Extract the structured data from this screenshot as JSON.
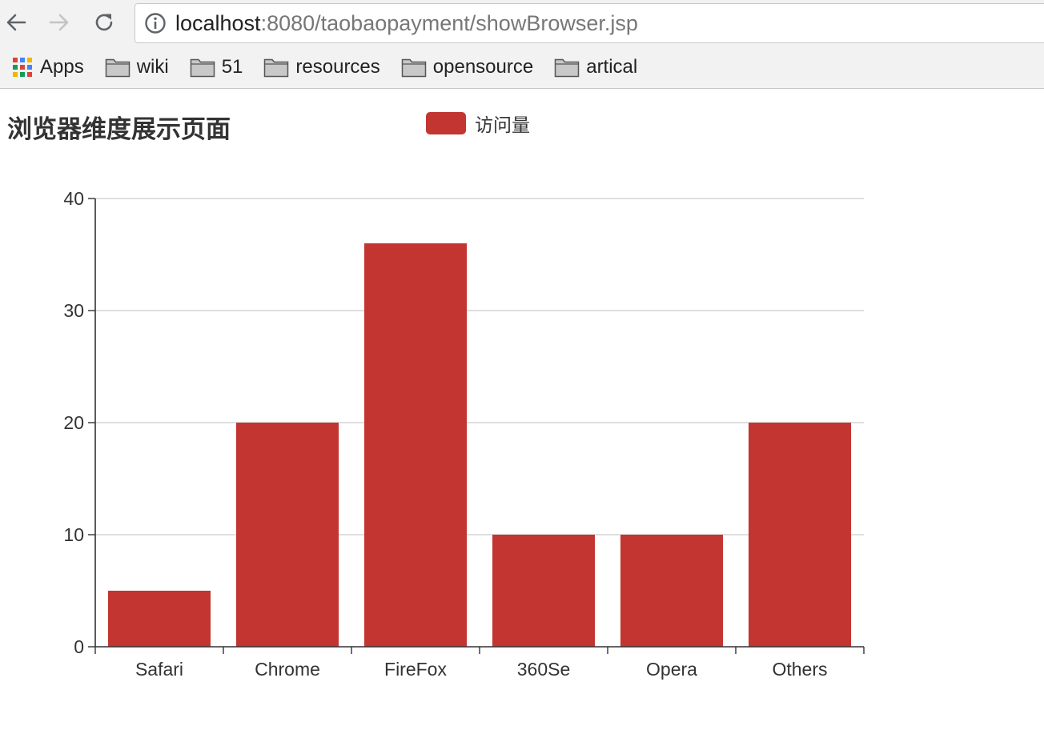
{
  "browser": {
    "url_host": "localhost",
    "url_rest": ":8080/taobaopayment/showBrowser.jsp",
    "back_icon": "back-arrow-icon",
    "forward_icon": "forward-arrow-icon",
    "reload_icon": "reload-icon",
    "info_icon": "info-icon"
  },
  "bookmarks": [
    {
      "label": "Apps",
      "icon": "apps-grid-icon"
    },
    {
      "label": "wiki",
      "icon": "folder-icon"
    },
    {
      "label": "51",
      "icon": "folder-icon"
    },
    {
      "label": "resources",
      "icon": "folder-icon"
    },
    {
      "label": "opensource",
      "icon": "folder-icon"
    },
    {
      "label": "artical",
      "icon": "folder-icon"
    }
  ],
  "page": {
    "title": "浏览器维度展示页面"
  },
  "chart_data": {
    "type": "bar",
    "categories": [
      "Safari",
      "Chrome",
      "FireFox",
      "360Se",
      "Opera",
      "Others"
    ],
    "series": [
      {
        "name": "访问量",
        "values": [
          5,
          20,
          36,
          10,
          10,
          20
        ],
        "color": "#c23531"
      }
    ],
    "ylim": [
      0,
      40
    ],
    "yticks": [
      0,
      10,
      20,
      30,
      40
    ],
    "grid": true,
    "legend": "top-center"
  }
}
